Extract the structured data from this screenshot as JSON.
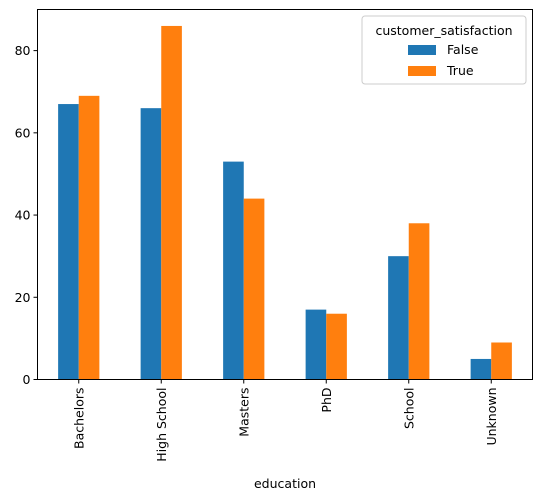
{
  "chart_data": {
    "type": "bar",
    "title": "",
    "xlabel": "education",
    "ylabel": "",
    "categories": [
      "Bachelors",
      "High School",
      "Masters",
      "PhD",
      "School",
      "Unknown"
    ],
    "series": [
      {
        "name": "False",
        "color": "#1f77b4",
        "values": [
          67,
          66,
          53,
          17,
          30,
          5
        ]
      },
      {
        "name": "True",
        "color": "#ff7f0e",
        "values": [
          69,
          86,
          44,
          16,
          38,
          9
        ]
      }
    ],
    "ylim": [
      0,
      90
    ],
    "yticks": [
      0,
      20,
      40,
      60,
      80
    ],
    "legend": {
      "title": "customer_satisfaction",
      "placement": "top-right"
    },
    "grid": false
  }
}
